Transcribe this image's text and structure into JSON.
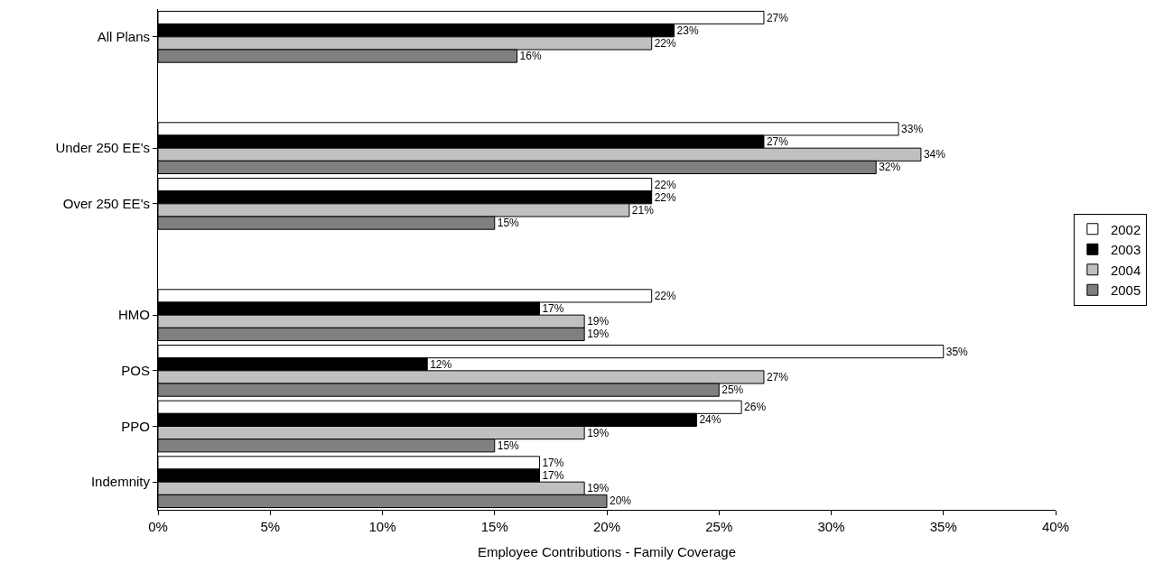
{
  "chart_data": {
    "type": "bar",
    "orientation": "horizontal",
    "xlabel": "Employee Contributions - Family Coverage",
    "categories": [
      "All Plans",
      null,
      "Under 250 EE's",
      "Over 250 EE's",
      null,
      "HMO",
      "POS",
      "PPO",
      "Indemnity"
    ],
    "series": [
      {
        "name": "2002",
        "color": "#ffffff",
        "values": [
          27,
          null,
          33,
          22,
          null,
          22,
          35,
          26,
          17
        ],
        "value_labels": [
          "27%",
          null,
          "33%",
          "22%",
          null,
          "22%",
          "35%",
          "26%",
          "17%"
        ]
      },
      {
        "name": "2003",
        "color": "#000000",
        "values": [
          23,
          null,
          27,
          22,
          null,
          17,
          12,
          24,
          17
        ],
        "value_labels": [
          "23%",
          null,
          "27%",
          "22%",
          null,
          "17%",
          "12%",
          "24%",
          "17%"
        ]
      },
      {
        "name": "2004",
        "color": "#c0c0c0",
        "values": [
          22,
          null,
          34,
          21,
          null,
          19,
          27,
          19,
          19
        ],
        "value_labels": [
          "22%",
          null,
          "34%",
          "21%",
          null,
          "19%",
          "27%",
          "19%",
          "19%"
        ]
      },
      {
        "name": "2005",
        "color": "#808080",
        "values": [
          16,
          null,
          32,
          15,
          null,
          19,
          25,
          15,
          20
        ],
        "value_labels": [
          "16%",
          null,
          "32%",
          "15%",
          null,
          "19%",
          "25%",
          "15%",
          "20%"
        ]
      }
    ],
    "xlim": [
      0,
      40
    ],
    "xticks": [
      {
        "value": 0,
        "label": "0%"
      },
      {
        "value": 5,
        "label": "5%"
      },
      {
        "value": 10,
        "label": "10%"
      },
      {
        "value": 15,
        "label": "15%"
      },
      {
        "value": 20,
        "label": "20%"
      },
      {
        "value": 25,
        "label": "25%"
      },
      {
        "value": 30,
        "label": "30%"
      },
      {
        "value": 35,
        "label": "35%"
      },
      {
        "value": 40,
        "label": "40%"
      }
    ],
    "legend": "right"
  }
}
